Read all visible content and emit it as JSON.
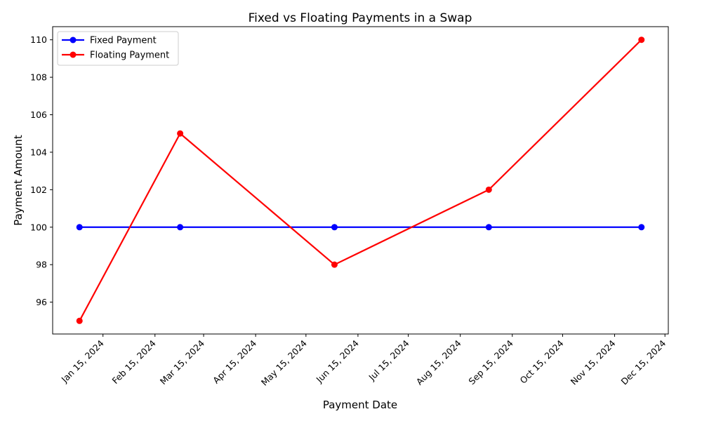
{
  "chart_data": {
    "type": "line",
    "title": "Fixed vs Floating Payments in a Swap",
    "xlabel": "Payment Date",
    "ylabel": "Payment Amount",
    "x": [
      "2024-01-01",
      "2024-03-01",
      "2024-06-01",
      "2024-09-01",
      "2024-12-01"
    ],
    "series": [
      {
        "name": "Fixed Payment",
        "color": "#0000ff",
        "marker": "circle",
        "values": [
          100,
          100,
          100,
          100,
          100
        ]
      },
      {
        "name": "Floating Payment",
        "color": "#ff0000",
        "marker": "circle",
        "values": [
          95,
          105,
          98,
          102,
          110
        ]
      }
    ],
    "ylim": [
      94.3,
      110.7
    ],
    "xlim": [
      "2023-12-16",
      "2024-12-17"
    ],
    "y_ticks": [
      96,
      98,
      100,
      102,
      104,
      106,
      108,
      110
    ],
    "x_ticks": [
      "2024-01-15",
      "2024-02-15",
      "2024-03-15",
      "2024-04-15",
      "2024-05-15",
      "2024-06-15",
      "2024-07-15",
      "2024-08-15",
      "2024-09-15",
      "2024-10-15",
      "2024-11-15",
      "2024-12-15"
    ],
    "x_tick_labels": [
      "Jan 15, 2024",
      "Feb 15, 2024",
      "Mar 15, 2024",
      "Apr 15, 2024",
      "May 15, 2024",
      "Jun 15, 2024",
      "Jul 15, 2024",
      "Aug 15, 2024",
      "Sep 15, 2024",
      "Oct 15, 2024",
      "Nov 15, 2024",
      "Dec 15, 2024"
    ],
    "grid": false,
    "legend_position": "top-left"
  }
}
